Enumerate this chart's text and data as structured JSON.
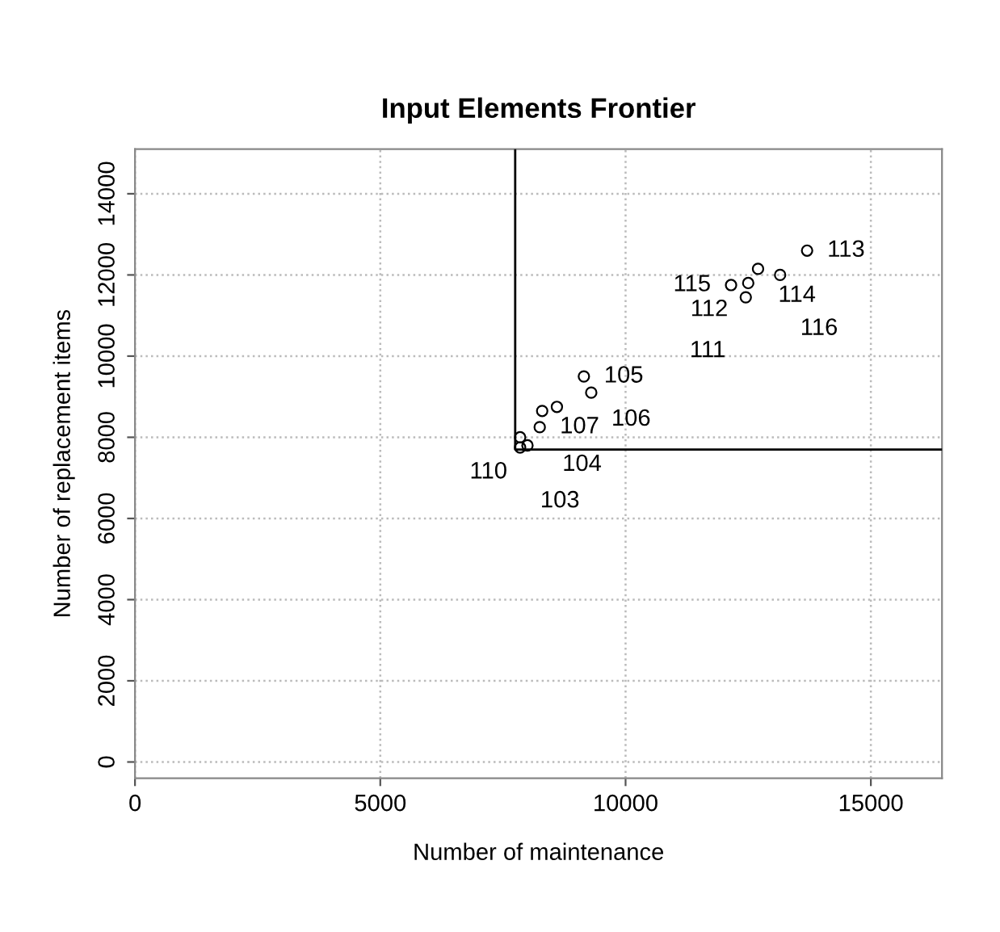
{
  "chart_data": {
    "type": "scatter",
    "title": "Input Elements Frontier",
    "xlabel": "Number of maintenance",
    "ylabel": "Number of replacement items",
    "xlim": [
      0,
      16450
    ],
    "ylim": [
      -400,
      15100
    ],
    "xticks": [
      0,
      5000,
      10000,
      15000
    ],
    "yticks": [
      0,
      2000,
      4000,
      6000,
      8000,
      10000,
      12000,
      14000
    ],
    "grid": true,
    "legend": false,
    "series": [
      {
        "color": "#000000",
        "marker": "circle",
        "x": [
          9150,
          9300,
          8300,
          8600,
          8250,
          7850,
          7850,
          8000,
          13700,
          12700,
          13150,
          12150,
          12500,
          12450
        ],
        "values": [
          9500,
          9100,
          8650,
          8750,
          8250,
          8000,
          7750,
          7800,
          12600,
          12150,
          12000,
          11750,
          11800,
          11450
        ]
      },
      {
        "type": "line",
        "color": "#000000",
        "marker": "none",
        "line_style": "solid",
        "x": [
          7750,
          7750,
          16450
        ],
        "values": [
          15100,
          7700,
          7700
        ]
      }
    ],
    "annotations": [
      {
        "text": "105",
        "x": 9150,
        "y": 9500
      },
      {
        "text": "106",
        "x": 9300,
        "y": 9100
      },
      {
        "text": "104",
        "x": 8300,
        "y": 8650
      },
      {
        "text": "107",
        "x": 8250,
        "y": 8250
      },
      {
        "text": "103",
        "x": 7850,
        "y": 7750
      },
      {
        "text": "110",
        "x": 8000,
        "y": 7800
      },
      {
        "text": "113",
        "x": 13700,
        "y": 12600
      },
      {
        "text": "114",
        "x": 12700,
        "y": 12150
      },
      {
        "text": "116",
        "x": 13150,
        "y": 12000
      },
      {
        "text": "115",
        "x": 12150,
        "y": 11750
      },
      {
        "text": "112",
        "x": 12500,
        "y": 11800
      },
      {
        "text": "111",
        "x": 12450,
        "y": 11450
      }
    ]
  }
}
